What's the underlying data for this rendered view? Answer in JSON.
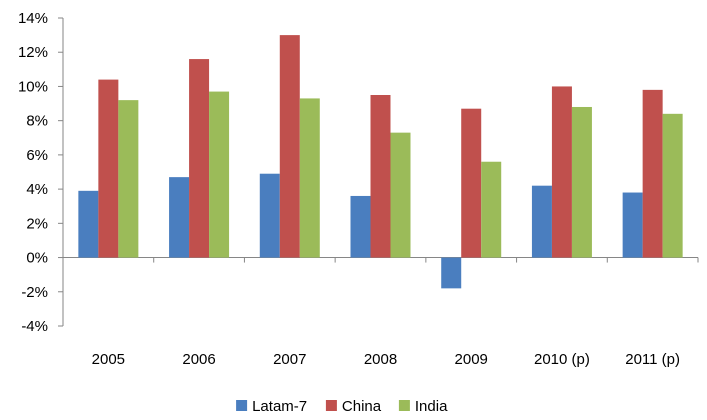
{
  "chart_data": {
    "type": "bar",
    "title": "",
    "xlabel": "",
    "ylabel": "",
    "categories": [
      "2005",
      "2006",
      "2007",
      "2008",
      "2009",
      "2010 (p)",
      "2011 (p)"
    ],
    "series": [
      {
        "name": "Latam-7",
        "color": "#4a7ebf",
        "values": [
          3.9,
          4.7,
          4.9,
          3.6,
          -1.8,
          4.2,
          3.8
        ]
      },
      {
        "name": "China",
        "color": "#c0504d",
        "values": [
          10.4,
          11.6,
          13.0,
          9.5,
          8.7,
          10.0,
          9.8
        ]
      },
      {
        "name": "India",
        "color": "#9bbb59",
        "values": [
          9.2,
          9.7,
          9.3,
          7.3,
          5.6,
          8.8,
          8.4
        ]
      }
    ],
    "y_ticks": [
      "14%",
      "12%",
      "10%",
      "8%",
      "6%",
      "4%",
      "2%",
      "0%",
      "-2%",
      "-4%"
    ],
    "ylim": [
      -4,
      14
    ],
    "y_step": 2,
    "grid": false,
    "legend_position": "bottom"
  }
}
